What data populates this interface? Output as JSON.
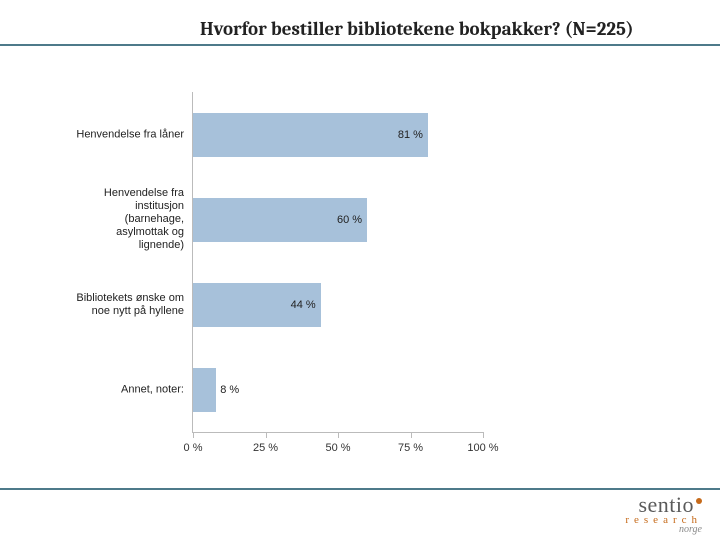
{
  "title": "Hvorfor bestiller bibliotekene bokpakker? (N=225)",
  "chart": {
    "type": "bar",
    "orientation": "horizontal",
    "bar_color": "#a7c1da",
    "axis_color": "#bbbbbb",
    "label_fontsize": 11,
    "value_fontsize": 11,
    "x": {
      "min": 0,
      "max": 100,
      "step": 25,
      "suffix": " %"
    },
    "rows": [
      {
        "label": "Henvendelse fra låner",
        "value": 81,
        "display": "81 %"
      },
      {
        "label": "Henvendelse fra institusjon (barnehage, asylmottak og lignende)",
        "value": 60,
        "display": "60 %"
      },
      {
        "label": "Bibliotekets ønske om noe nytt på hyllene",
        "value": 44,
        "display": "44 %"
      },
      {
        "label": "Annet, noter:",
        "value": 8,
        "display": "8 %"
      }
    ]
  },
  "logo": {
    "word": "sentio",
    "line2": "research",
    "line3": "norge",
    "accent_color": "#c66a1a",
    "text_color": "#5a5a5a"
  },
  "accent_line_color": "#4e7a8a"
}
